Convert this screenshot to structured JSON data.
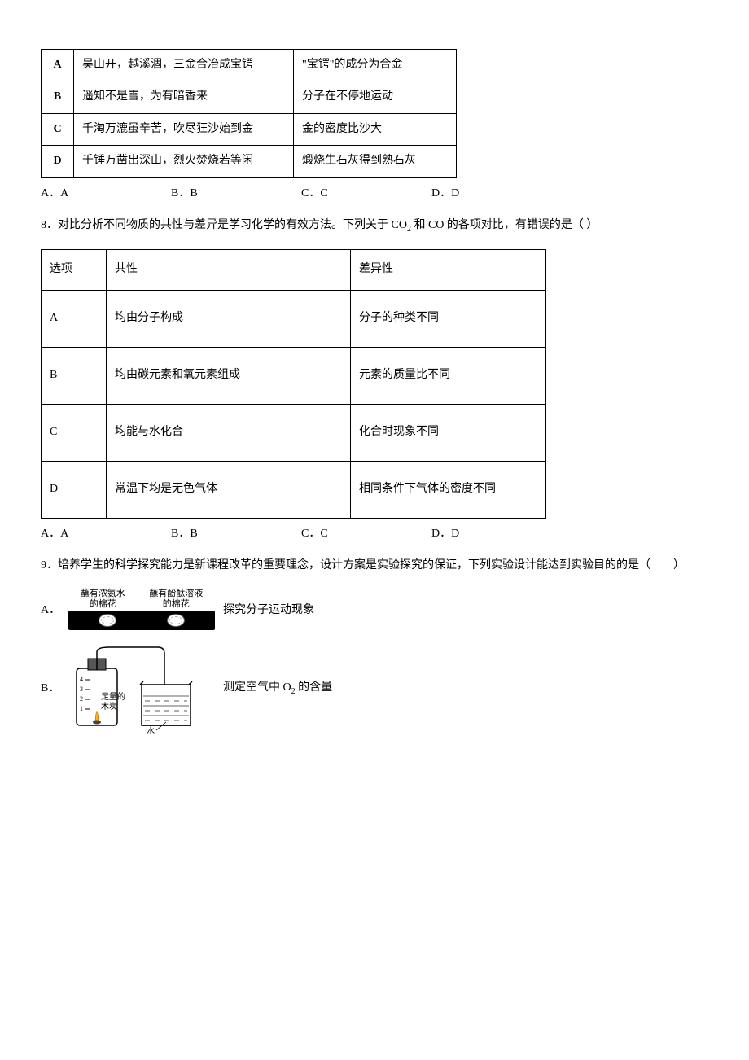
{
  "table1": {
    "rows": [
      {
        "key": "A",
        "poem": "吴山开，越溪涸，三金合冶成宝锷",
        "explain": "\"宝锷\"的成分为合金"
      },
      {
        "key": "B",
        "poem": "遥知不是雪，为有暗香来",
        "explain": "分子在不停地运动"
      },
      {
        "key": "C",
        "poem": "千淘万漉虽辛苦，吹尽狂沙始到金",
        "explain": "金的密度比沙大"
      },
      {
        "key": "D",
        "poem": "千锤万凿出深山，烈火焚烧若等闲",
        "explain": "煅烧生石灰得到熟石灰"
      }
    ]
  },
  "options1": {
    "a": "A．A",
    "b": "B．B",
    "c": "C．C",
    "d": "D．D"
  },
  "q8": {
    "text_pre": "8．对比分析不同物质的共性与差异是学习化学的有效方法。下列关于 CO",
    "text_mid": " 和 CO 的各项对比，有错误的是（  ）",
    "sub2": "2"
  },
  "table2": {
    "header": {
      "c1": "选项",
      "c2": "共性",
      "c3": "差异性"
    },
    "rows": [
      {
        "k": "A",
        "common": "均由分子构成",
        "diff": "分子的种类不同"
      },
      {
        "k": "B",
        "common": "均由碳元素和氧元素组成",
        "diff": "元素的质量比不同"
      },
      {
        "k": "C",
        "common": "均能与水化合",
        "diff": "化合时现象不同"
      },
      {
        "k": "D",
        "common": "常温下均是无色气体",
        "diff": "相同条件下气体的密度不同"
      }
    ]
  },
  "options2": {
    "a": "A．A",
    "b": "B．B",
    "c": "C．C",
    "d": "D．D"
  },
  "q9": {
    "text": "9．培养学生的科学探究能力是新课程改革的重要理念，设计方案是实验探究的保证，下列实验设计能达到实验目的的是（　　）"
  },
  "subA": {
    "label": "A．",
    "top_left": "蘸有浓氨水\n的棉花",
    "top_right": "蘸有酚酞溶液\n的棉花",
    "desc": "探究分子运动现象"
  },
  "subB": {
    "label": "B．",
    "charcoal_label": "足量的\n木炭",
    "water_label": "水",
    "marks": [
      "4",
      "3",
      "2",
      "1"
    ],
    "desc_pre": "测定空气中 O",
    "desc_sub": "2",
    "desc_post": " 的含量"
  },
  "colors": {
    "border": "#000000",
    "text": "#000000",
    "bg": "#ffffff",
    "tube": "#000000",
    "water_fill": "#ffffff",
    "hatch": "#333333"
  }
}
